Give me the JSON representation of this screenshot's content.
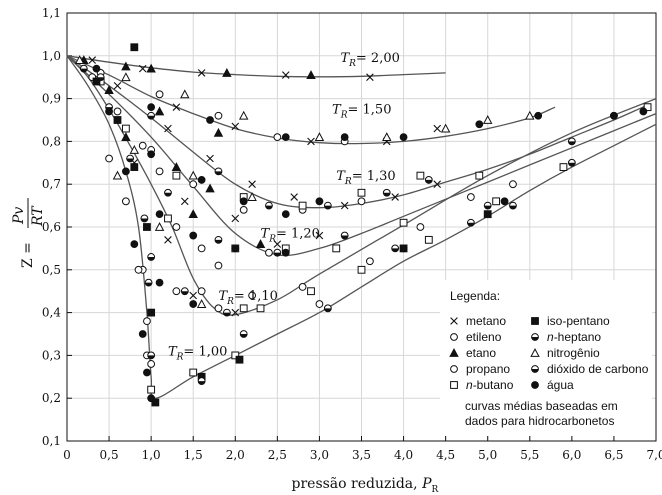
{
  "chart_data": {
    "type": "scatter",
    "ylabel_prefix": "Z =",
    "ylabel_numerator": "Pv",
    "ylabel_denominator": "RT",
    "xlabel_text": "pressão reduzida, ",
    "xlabel_var": "P",
    "xlabel_sub": "R",
    "xlim": [
      0,
      7.0
    ],
    "ylim": [
      0.1,
      1.1
    ],
    "x_ticks": [
      0,
      0.5,
      1.0,
      1.5,
      2.0,
      2.5,
      3.0,
      3.5,
      4.0,
      4.5,
      5.0,
      5.5,
      6.0,
      6.5,
      7.0
    ],
    "x_tick_labels": [
      "0",
      "0,5",
      "1,0",
      "1,5",
      "2,0",
      "2,5",
      "3,0",
      "3,5",
      "4,0",
      "4,5",
      "5,0",
      "5,5",
      "6,0",
      "6,5",
      "7,0"
    ],
    "y_ticks": [
      0.1,
      0.2,
      0.3,
      0.4,
      0.5,
      0.6,
      0.7,
      0.8,
      0.9,
      1.0,
      1.1
    ],
    "y_tick_labels": [
      "0,1",
      "0,2",
      "0,3",
      "0,4",
      "0,5",
      "0,6",
      "0,7",
      "0,8",
      "0,9",
      "1,0",
      "1,1"
    ],
    "grid": true,
    "legend_position": "bottom-right",
    "curve_labels": [
      {
        "tr": "T",
        "sub": "R",
        "value": "= 2,00",
        "x": 3.25,
        "y": 0.985
      },
      {
        "tr": "T",
        "sub": "R",
        "value": "= 1,50",
        "x": 3.15,
        "y": 0.865
      },
      {
        "tr": "T",
        "sub": "R",
        "value": "= 1,30",
        "x": 3.2,
        "y": 0.71
      },
      {
        "tr": "T",
        "sub": "R",
        "value": "= 1,20",
        "x": 2.3,
        "y": 0.575
      },
      {
        "tr": "T",
        "sub": "R",
        "value": "= 1,10",
        "x": 1.8,
        "y": 0.43
      },
      {
        "tr": "T",
        "sub": "R",
        "value": "= 1,00",
        "x": 1.2,
        "y": 0.3
      }
    ],
    "curves": [
      {
        "tr_value": 2.0,
        "x": [
          0,
          0.5,
          1,
          1.5,
          2,
          2.5,
          3,
          3.5,
          4,
          4.5
        ],
        "y": [
          1.0,
          0.985,
          0.972,
          0.962,
          0.956,
          0.952,
          0.951,
          0.952,
          0.956,
          0.96
        ]
      },
      {
        "tr_value": 1.5,
        "x": [
          0,
          0.5,
          1,
          1.5,
          2,
          2.5,
          3,
          3.5,
          4,
          4.5,
          5,
          5.5,
          5.8
        ],
        "y": [
          1.0,
          0.955,
          0.905,
          0.865,
          0.83,
          0.808,
          0.797,
          0.795,
          0.8,
          0.812,
          0.83,
          0.855,
          0.88
        ]
      },
      {
        "tr_value": 1.3,
        "x": [
          0,
          0.5,
          1,
          1.5,
          2,
          2.5,
          3,
          3.5,
          4,
          4.5,
          5,
          5.5,
          6,
          6.5,
          6.9
        ],
        "y": [
          1.0,
          0.93,
          0.855,
          0.775,
          0.7,
          0.655,
          0.645,
          0.655,
          0.675,
          0.705,
          0.735,
          0.77,
          0.81,
          0.85,
          0.885
        ]
      },
      {
        "tr_value": 1.2,
        "x": [
          0,
          0.5,
          1,
          1.5,
          2,
          2.5,
          3,
          3.5,
          4,
          5,
          6,
          7
        ],
        "y": [
          1.0,
          0.91,
          0.81,
          0.695,
          0.585,
          0.535,
          0.55,
          0.585,
          0.625,
          0.705,
          0.785,
          0.865
        ]
      },
      {
        "tr_value": 1.1,
        "x": [
          0,
          0.25,
          0.5,
          0.75,
          1,
          1.25,
          1.5,
          1.75,
          2,
          2.5,
          3,
          4,
          5,
          6,
          7
        ],
        "y": [
          1.0,
          0.95,
          0.875,
          0.79,
          0.7,
          0.6,
          0.48,
          0.41,
          0.395,
          0.43,
          0.49,
          0.605,
          0.72,
          0.82,
          0.9
        ]
      },
      {
        "tr_value": 1.0,
        "x": [
          0,
          0.25,
          0.5,
          0.7,
          0.85,
          0.95,
          1.0,
          1.05,
          1.5,
          2,
          2.5,
          3,
          3.5,
          4,
          4.5,
          5,
          5.5,
          6,
          6.5,
          7
        ],
        "y": [
          1.0,
          0.93,
          0.84,
          0.73,
          0.6,
          0.4,
          0.25,
          0.2,
          0.25,
          0.3,
          0.35,
          0.4,
          0.46,
          0.52,
          0.57,
          0.625,
          0.685,
          0.74,
          0.79,
          0.84
        ]
      }
    ],
    "series": [
      {
        "name": "metano",
        "marker": "x",
        "points": [
          [
            0.3,
            0.99
          ],
          [
            0.9,
            0.97
          ],
          [
            1.6,
            0.96
          ],
          [
            2.6,
            0.955
          ],
          [
            3.6,
            0.95
          ],
          [
            0.6,
            0.93
          ],
          [
            1.3,
            0.88
          ],
          [
            2.0,
            0.835
          ],
          [
            2.9,
            0.8
          ],
          [
            3.8,
            0.8
          ],
          [
            4.4,
            0.83
          ],
          [
            1.2,
            0.83
          ],
          [
            1.7,
            0.76
          ],
          [
            2.2,
            0.7
          ],
          [
            2.7,
            0.67
          ],
          [
            3.3,
            0.65
          ],
          [
            3.9,
            0.67
          ],
          [
            4.4,
            0.7
          ],
          [
            1.4,
            0.66
          ],
          [
            2.0,
            0.62
          ],
          [
            2.5,
            0.56
          ],
          [
            3.0,
            0.58
          ],
          [
            0.8,
            0.75
          ],
          [
            1.2,
            0.57
          ],
          [
            1.5,
            0.44
          ],
          [
            2.0,
            0.4
          ]
        ]
      },
      {
        "name": "etileno",
        "marker": "circle-open",
        "points": [
          [
            0.4,
            0.96
          ],
          [
            1.1,
            0.91
          ],
          [
            1.8,
            0.86
          ],
          [
            2.5,
            0.81
          ],
          [
            3.3,
            0.8
          ],
          [
            1.0,
            0.78
          ],
          [
            1.5,
            0.7
          ],
          [
            2.1,
            0.64
          ],
          [
            2.8,
            0.64
          ],
          [
            3.5,
            0.66
          ],
          [
            1.3,
            0.6
          ],
          [
            1.8,
            0.51
          ],
          [
            2.4,
            0.54
          ],
          [
            0.9,
            0.5
          ],
          [
            1.3,
            0.45
          ],
          [
            1.8,
            0.41
          ],
          [
            0.95,
            0.3
          ]
        ]
      },
      {
        "name": "etano",
        "marker": "triangle-filled",
        "points": [
          [
            0.2,
            0.99
          ],
          [
            0.7,
            0.975
          ],
          [
            1.0,
            0.97
          ],
          [
            1.9,
            0.96
          ],
          [
            2.9,
            0.955
          ],
          [
            0.5,
            0.92
          ],
          [
            1.1,
            0.87
          ],
          [
            1.8,
            0.82
          ],
          [
            0.7,
            0.81
          ],
          [
            1.3,
            0.74
          ],
          [
            1.7,
            0.69
          ],
          [
            1.5,
            0.63
          ],
          [
            2.3,
            0.56
          ]
        ]
      },
      {
        "name": "propano",
        "marker": "circle-open",
        "points": [
          [
            0.3,
            0.95
          ],
          [
            0.6,
            0.87
          ],
          [
            0.9,
            0.79
          ],
          [
            1.1,
            0.73
          ],
          [
            1.6,
            0.55
          ],
          [
            1.6,
            0.45
          ],
          [
            2.2,
            0.44
          ],
          [
            2.8,
            0.46
          ],
          [
            3.0,
            0.42
          ],
          [
            3.6,
            0.52
          ],
          [
            4.2,
            0.6
          ],
          [
            4.8,
            0.67
          ],
          [
            5.3,
            0.7
          ],
          [
            0.5,
            0.76
          ],
          [
            0.7,
            0.66
          ],
          [
            0.85,
            0.5
          ],
          [
            0.95,
            0.38
          ],
          [
            1.0,
            0.28
          ]
        ]
      },
      {
        "name": "n-butano",
        "marker": "square-open",
        "points": [
          [
            0.4,
            0.94
          ],
          [
            0.7,
            0.83
          ],
          [
            1.3,
            0.72
          ],
          [
            2.1,
            0.67
          ],
          [
            2.8,
            0.65
          ],
          [
            3.5,
            0.68
          ],
          [
            4.2,
            0.72
          ],
          [
            4.9,
            0.72
          ],
          [
            1.2,
            0.62
          ],
          [
            2.0,
            0.55
          ],
          [
            2.6,
            0.55
          ],
          [
            3.2,
            0.55
          ],
          [
            4.0,
            0.61
          ],
          [
            2.1,
            0.41
          ],
          [
            2.3,
            0.41
          ],
          [
            2.9,
            0.45
          ],
          [
            3.5,
            0.5
          ],
          [
            4.3,
            0.57
          ],
          [
            5.1,
            0.66
          ],
          [
            5.9,
            0.74
          ],
          [
            6.9,
            0.88
          ],
          [
            1.0,
            0.22
          ],
          [
            1.5,
            0.26
          ],
          [
            2.0,
            0.3
          ]
        ]
      },
      {
        "name": "iso-pentano",
        "marker": "square-filled",
        "points": [
          [
            0.8,
            1.02
          ],
          [
            0.35,
            0.94
          ],
          [
            0.6,
            0.85
          ],
          [
            0.8,
            0.74
          ],
          [
            0.95,
            0.6
          ],
          [
            1.0,
            0.4
          ],
          [
            1.05,
            0.19
          ],
          [
            1.6,
            0.25
          ],
          [
            2.05,
            0.29
          ],
          [
            4.0,
            0.55
          ],
          [
            5.0,
            0.63
          ]
        ]
      },
      {
        "name": "n-heptano",
        "marker": "half-filled",
        "points": [
          [
            0.2,
            0.97
          ],
          [
            0.5,
            0.88
          ],
          [
            0.75,
            0.76
          ],
          [
            0.92,
            0.62
          ],
          [
            0.97,
            0.47
          ],
          [
            1.0,
            0.3
          ],
          [
            1.6,
            0.24
          ],
          [
            2.1,
            0.35
          ],
          [
            3.1,
            0.41
          ],
          [
            3.9,
            0.55
          ],
          [
            5.0,
            0.65
          ],
          [
            6.0,
            0.75
          ]
        ]
      },
      {
        "name": "nitrogênio",
        "marker": "triangle-open",
        "points": [
          [
            0.15,
            0.99
          ],
          [
            0.7,
            0.95
          ],
          [
            1.4,
            0.91
          ],
          [
            2.1,
            0.86
          ],
          [
            3.0,
            0.81
          ],
          [
            3.8,
            0.81
          ],
          [
            4.5,
            0.83
          ],
          [
            5.0,
            0.85
          ],
          [
            5.5,
            0.86
          ],
          [
            0.8,
            0.78
          ],
          [
            1.5,
            0.72
          ],
          [
            2.2,
            0.67
          ],
          [
            0.6,
            0.72
          ],
          [
            1.1,
            0.6
          ],
          [
            1.6,
            0.42
          ]
        ]
      },
      {
        "name": "dióxido de carbono",
        "marker": "half-filled",
        "points": [
          [
            0.4,
            0.95
          ],
          [
            1.0,
            0.86
          ],
          [
            1.8,
            0.73
          ],
          [
            2.4,
            0.65
          ],
          [
            3.1,
            0.65
          ],
          [
            3.8,
            0.68
          ],
          [
            4.3,
            0.71
          ],
          [
            1.2,
            0.68
          ],
          [
            1.8,
            0.57
          ],
          [
            2.5,
            0.54
          ],
          [
            3.3,
            0.58
          ],
          [
            1.0,
            0.53
          ],
          [
            1.4,
            0.45
          ],
          [
            1.9,
            0.4
          ],
          [
            4.8,
            0.61
          ],
          [
            5.3,
            0.65
          ],
          [
            6.0,
            0.8
          ],
          [
            6.5,
            0.86
          ]
        ]
      },
      {
        "name": "água",
        "marker": "circle-filled",
        "points": [
          [
            0.35,
            0.97
          ],
          [
            1.0,
            0.88
          ],
          [
            1.7,
            0.85
          ],
          [
            2.6,
            0.81
          ],
          [
            3.3,
            0.81
          ],
          [
            4.0,
            0.81
          ],
          [
            4.9,
            0.84
          ],
          [
            5.6,
            0.86
          ],
          [
            0.5,
            0.87
          ],
          [
            1.0,
            0.77
          ],
          [
            1.6,
            0.71
          ],
          [
            2.1,
            0.66
          ],
          [
            2.6,
            0.63
          ],
          [
            3.0,
            0.66
          ],
          [
            0.7,
            0.73
          ],
          [
            1.1,
            0.63
          ],
          [
            1.5,
            0.58
          ],
          [
            2.0,
            0.55
          ],
          [
            2.6,
            0.54
          ],
          [
            0.8,
            0.56
          ],
          [
            1.1,
            0.47
          ],
          [
            1.5,
            0.42
          ],
          [
            0.9,
            0.35
          ],
          [
            0.95,
            0.26
          ],
          [
            1.0,
            0.2
          ],
          [
            4.0,
            0.55
          ],
          [
            5.2,
            0.66
          ],
          [
            6.5,
            0.86
          ],
          [
            6.85,
            0.87
          ]
        ]
      }
    ],
    "legend": {
      "title": "Legenda:",
      "left_items": [
        {
          "marker": "x",
          "label": "metano"
        },
        {
          "marker": "circle-open",
          "label": "etileno"
        },
        {
          "marker": "triangle-filled",
          "label": "etano"
        },
        {
          "marker": "circle-open",
          "label": "propano"
        },
        {
          "marker": "square-open",
          "label": "n-butano"
        }
      ],
      "right_items": [
        {
          "marker": "square-filled",
          "label": "iso-pentano"
        },
        {
          "marker": "half-filled",
          "label": "n-heptano"
        },
        {
          "marker": "triangle-open",
          "label": "nitrogênio"
        },
        {
          "marker": "half-filled",
          "label": "dióxido de carbono"
        },
        {
          "marker": "circle-filled",
          "label": "água"
        }
      ],
      "note_line1": "curvas médias baseadas em",
      "note_line2": "dados para hidrocarbonetos"
    },
    "colors": {
      "ink": "#111111",
      "grid": "#d7d7d7",
      "curve": "#555555"
    }
  }
}
